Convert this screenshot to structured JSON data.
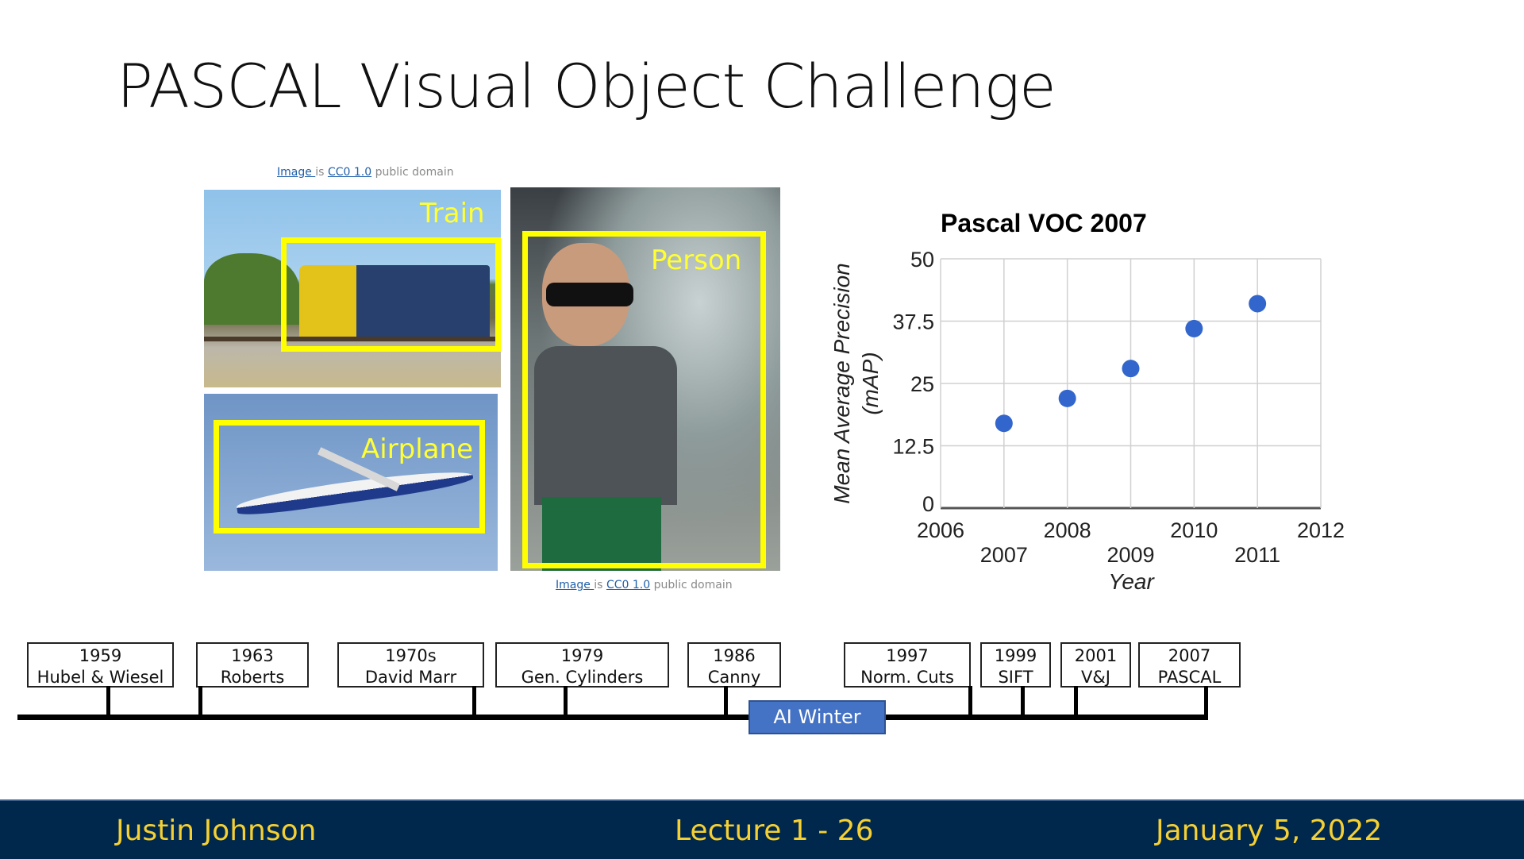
{
  "slide": {
    "title": "PASCAL Visual Object Challenge"
  },
  "credits": [
    {
      "link1": "Image ",
      "is": "is ",
      "link2": "CC0 1.0",
      "rest": " public domain"
    },
    {
      "link1": "Image ",
      "is": "is ",
      "link2": "CC0 1.0",
      "rest": " public domain"
    }
  ],
  "images": {
    "train_label": "Train",
    "airplane_label": "Airplane",
    "person_label": "Person",
    "box_color": "#ffff00"
  },
  "chart_data": {
    "type": "scatter",
    "title": "Pascal VOC 2007",
    "xlabel": "Year",
    "ylabel": "Mean Average Precision (mAP)",
    "ylabel_lines": [
      "Mean Average Precision",
      "(mAP)"
    ],
    "xlim": [
      2006,
      2012
    ],
    "ylim": [
      0,
      50
    ],
    "xticks": [
      "2006",
      "2007",
      "2008",
      "2009",
      "2010",
      "2011",
      "2012"
    ],
    "yticks": [
      "0",
      "12.5",
      "25",
      "37.5",
      "50"
    ],
    "grid": true,
    "point_color": "#3366cc",
    "x": [
      2007,
      2008,
      2009,
      2010,
      2011
    ],
    "y": [
      17,
      22,
      28,
      36,
      41
    ]
  },
  "timeline": {
    "events": [
      {
        "year": "1959",
        "label": "Hubel & Wiesel"
      },
      {
        "year": "1963",
        "label": "Roberts"
      },
      {
        "year": "1970s",
        "label": "David Marr"
      },
      {
        "year": "1979",
        "label": "Gen. Cylinders"
      },
      {
        "year": "1986",
        "label": "Canny"
      },
      {
        "year": "1997",
        "label": "Norm. Cuts"
      },
      {
        "year": "1999",
        "label": "SIFT"
      },
      {
        "year": "2001",
        "label": "V&J"
      },
      {
        "year": "2007",
        "label": "PASCAL"
      }
    ],
    "ai_winter": "AI Winter",
    "ai_winter_color": "#4472c4"
  },
  "footer": {
    "author": "Justin Johnson",
    "lecture": "Lecture 1 - 26",
    "date": "January 5, 2022",
    "bg_color": "#00274c",
    "text_color": "#f5d033"
  }
}
